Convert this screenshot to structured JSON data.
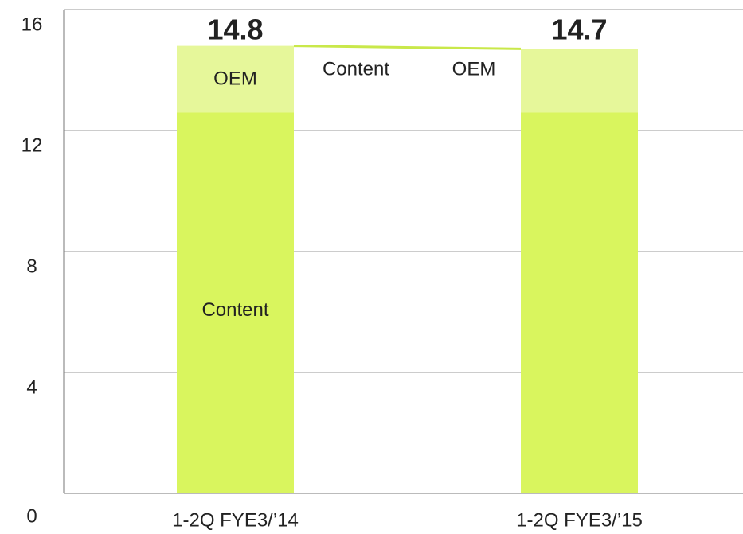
{
  "chart_data": {
    "type": "stacked_bar",
    "categories": [
      "1-2Q FYE3/’14",
      "1-2Q FYE3/’15"
    ],
    "series": [
      {
        "name": "Content",
        "color": "#d9f55e",
        "values": [
          12.6,
          12.6
        ]
      },
      {
        "name": "OEM",
        "color": "#e6f79a",
        "values": [
          2.2,
          2.1
        ]
      }
    ],
    "totals": [
      14.8,
      14.7
    ],
    "ylim": [
      0,
      16
    ],
    "yticks": [
      0,
      4,
      8,
      12,
      16
    ],
    "grid": true
  }
}
